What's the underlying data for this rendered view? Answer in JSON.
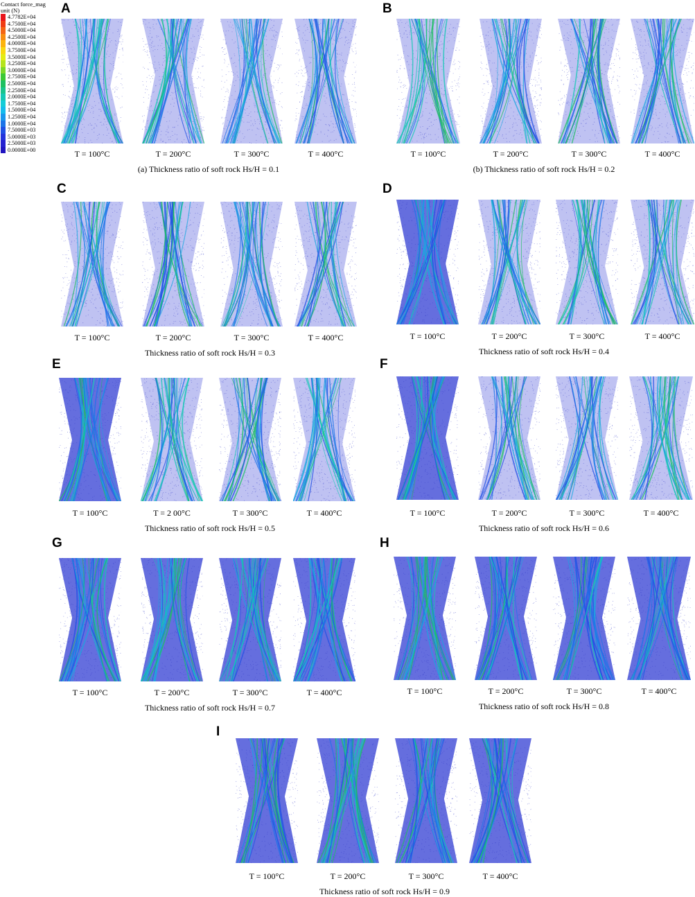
{
  "legend": {
    "title_line1": "Contact force_mag",
    "title_line2": "unit (N)",
    "entries": [
      {
        "label": "4.7782E+04",
        "color": "#e8141c"
      },
      {
        "label": "4.7500E+04",
        "color": "#f03c14"
      },
      {
        "label": "4.5000E+04",
        "color": "#f46414"
      },
      {
        "label": "4.2500E+04",
        "color": "#f88c10"
      },
      {
        "label": "4.0000E+04",
        "color": "#fcb40c"
      },
      {
        "label": "3.7500E+04",
        "color": "#f8d810"
      },
      {
        "label": "3.5000E+04",
        "color": "#e4ec14"
      },
      {
        "label": "3.2500E+04",
        "color": "#b4e41c"
      },
      {
        "label": "3.0000E+04",
        "color": "#7cd828"
      },
      {
        "label": "2.7500E+04",
        "color": "#3cc834"
      },
      {
        "label": "2.5000E+04",
        "color": "#1cc060"
      },
      {
        "label": "2.2500E+04",
        "color": "#18c48c"
      },
      {
        "label": "2.0000E+04",
        "color": "#14c8b4"
      },
      {
        "label": "1.7500E+04",
        "color": "#14ccd8"
      },
      {
        "label": "1.5000E+04",
        "color": "#14bcec"
      },
      {
        "label": "1.2500E+04",
        "color": "#1898ec"
      },
      {
        "label": "1.0000E+04",
        "color": "#1c74e8"
      },
      {
        "label": "7.5000E+03",
        "color": "#2050e4"
      },
      {
        "label": "5.0000E+03",
        "color": "#2434dc"
      },
      {
        "label": "2.5000E+03",
        "color": "#2420d0"
      },
      {
        "label": "0.0000E+00",
        "color": "#2014c0"
      }
    ]
  },
  "panels": [
    {
      "letter": "A",
      "caption": "(a) Thickness ratio of soft rock Hs/H = 0.1",
      "temps": [
        "T = 100°C",
        "T = 200°C",
        "T = 300°C",
        "T = 400°C"
      ]
    },
    {
      "letter": "B",
      "caption": "(b) Thickness ratio of soft rock Hs/H = 0.2",
      "temps": [
        "T = 100°C",
        "T = 200°C",
        "T = 300°C",
        "T = 400°C"
      ]
    },
    {
      "letter": "C",
      "caption": "Thickness ratio of soft rock Hs/H = 0.3",
      "temps": [
        "T = 100°C",
        "T = 200°C",
        "T = 300°C",
        "T = 400°C"
      ]
    },
    {
      "letter": "D",
      "caption": "Thickness ratio of soft rock Hs/H = 0.4",
      "temps": [
        "T = 100°C",
        "T = 200°C",
        "T = 300°C",
        "T = 400°C"
      ]
    },
    {
      "letter": "E",
      "caption": "Thickness ratio of soft rock Hs/H = 0.5",
      "temps": [
        "T = 100°C",
        "T = 2 00°C",
        "T = 300°C",
        "T = 400°C"
      ]
    },
    {
      "letter": "F",
      "caption": "Thickness ratio of soft rock Hs/H = 0.6",
      "temps": [
        "T = 100°C",
        "T = 200°C",
        "T = 300°C",
        "T = 400°C"
      ]
    },
    {
      "letter": "G",
      "caption": "Thickness ratio of soft rock Hs/H = 0.7",
      "temps": [
        "T = 100°C",
        "T = 200°C",
        "T = 300°C",
        "T = 400°C"
      ]
    },
    {
      "letter": "H",
      "caption": "Thickness ratio of soft rock Hs/H = 0.8",
      "temps": [
        "T = 100°C",
        "T = 200°C",
        "T = 300°C",
        "T = 400°C"
      ]
    },
    {
      "letter": "I",
      "caption": "Thickness ratio of soft rock Hs/H = 0.9",
      "temps": [
        "T = 100°C",
        "T = 200°C",
        "T = 300°C",
        "T = 400°C"
      ]
    }
  ]
}
